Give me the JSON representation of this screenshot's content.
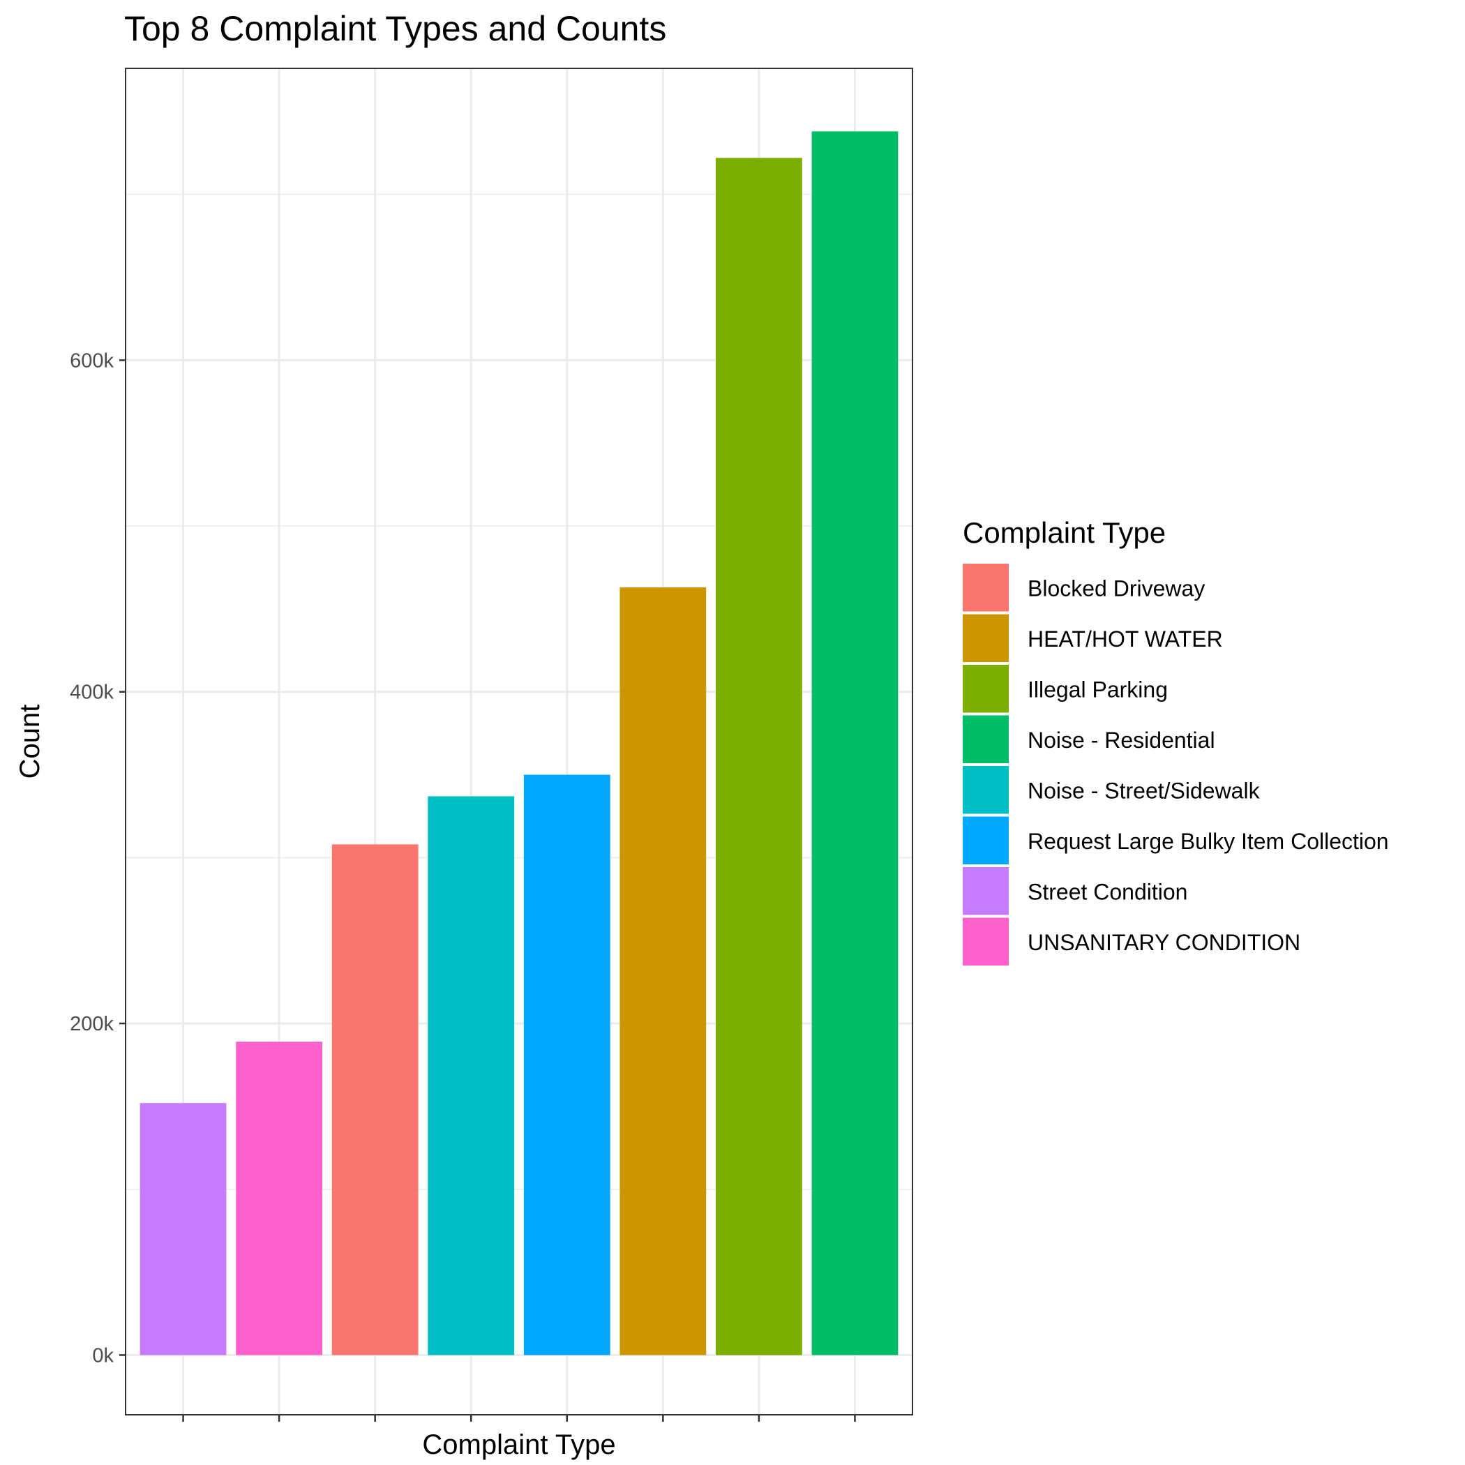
{
  "chart_data": {
    "type": "bar",
    "title": "Top 8 Complaint Types and Counts",
    "xlabel": "Complaint Type",
    "ylabel": "Count",
    "ylim": [
      -36000,
      776000
    ],
    "y_ticks": [
      {
        "value": 0,
        "label": "0k"
      },
      {
        "value": 200000,
        "label": "200k"
      },
      {
        "value": 400000,
        "label": "400k"
      },
      {
        "value": 600000,
        "label": "600k"
      }
    ],
    "y_minor_grid": [
      100000,
      300000,
      500000,
      700000
    ],
    "grid": true,
    "categories": [
      "Street Condition",
      "UNSANITARY CONDITION",
      "Blocked Driveway",
      "Noise - Street/Sidewalk",
      "Request Large Bulky Item Collection",
      "HEAT/HOT WATER",
      "Illegal Parking",
      "Noise - Residential"
    ],
    "values": [
      152000,
      189000,
      308000,
      337000,
      350000,
      463000,
      722000,
      738000
    ],
    "colors": [
      "#C77CFF",
      "#FF61CC",
      "#F8766D",
      "#00BFC4",
      "#00A9FF",
      "#CD9600",
      "#7CAE00",
      "#00BE67"
    ],
    "legend": {
      "title": "Complaint Type",
      "position": "right",
      "items": [
        {
          "label": "Blocked Driveway",
          "color": "#F8766D"
        },
        {
          "label": "HEAT/HOT WATER",
          "color": "#CD9600"
        },
        {
          "label": "Illegal Parking",
          "color": "#7CAE00"
        },
        {
          "label": "Noise - Residential",
          "color": "#00BE67"
        },
        {
          "label": "Noise - Street/Sidewalk",
          "color": "#00BFC4"
        },
        {
          "label": "Request Large Bulky Item Collection",
          "color": "#00A9FF"
        },
        {
          "label": "Street Condition",
          "color": "#C77CFF"
        },
        {
          "label": "UNSANITARY CONDITION",
          "color": "#FF61CC"
        }
      ]
    }
  }
}
